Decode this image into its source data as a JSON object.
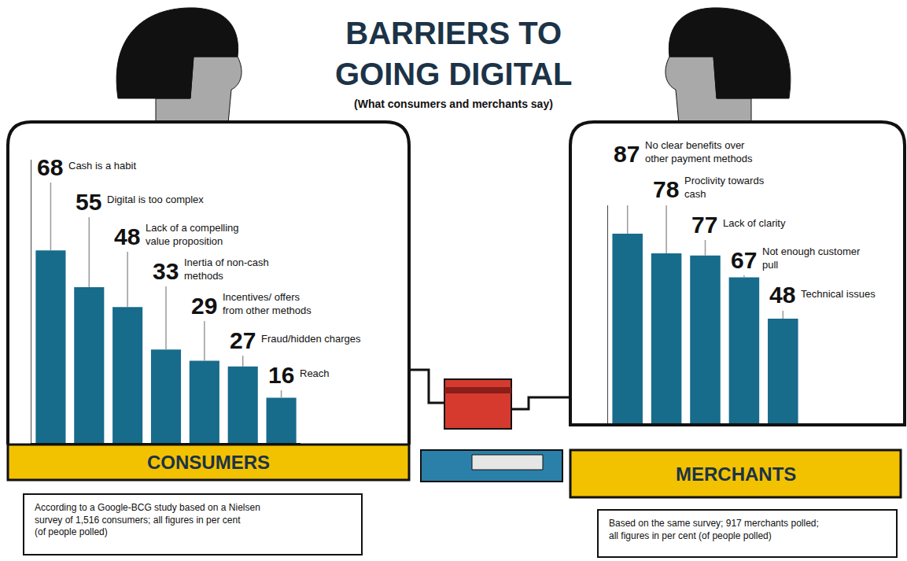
{
  "title": "BARRIERS TO GOING DIGITAL",
  "subtitle": "(What consumers and merchants say)",
  "chart_data": [
    {
      "type": "bar",
      "title": "CONSUMERS",
      "annotations": [
        "According to a Google-BCG study based on a Nielsen survey of 1,516 consumers; all figures in per cent (of people polled)"
      ],
      "categories": [
        "Cash is a habit",
        "Digital is too complex",
        "Lack of a compelling value proposition",
        "Inertia of non-cash methods",
        "Incentives/ offers from other methods",
        "Fraud/hidden charges",
        "Reach"
      ],
      "values": [
        68,
        55,
        48,
        33,
        29,
        27,
        16
      ],
      "color": "#176b8b",
      "ylim": [
        0,
        100
      ],
      "grid": false,
      "data_labels": true,
      "tick_labels": false
    },
    {
      "type": "bar",
      "title": "MERCHANTS",
      "annotations": [
        "Based on the same survey; 917 merchants polled; all figures in per cent (of people polled)"
      ],
      "categories": [
        "No clear benefits over other payment methods",
        "Proclivity towards cash",
        "Lack of clarity",
        "Not enough customer pull",
        "Technical issues"
      ],
      "values": [
        87,
        78,
        77,
        67,
        48
      ],
      "color": "#176b8b",
      "ylim": [
        0,
        100
      ],
      "grid": false,
      "data_labels": true,
      "tick_labels": false
    }
  ]
}
